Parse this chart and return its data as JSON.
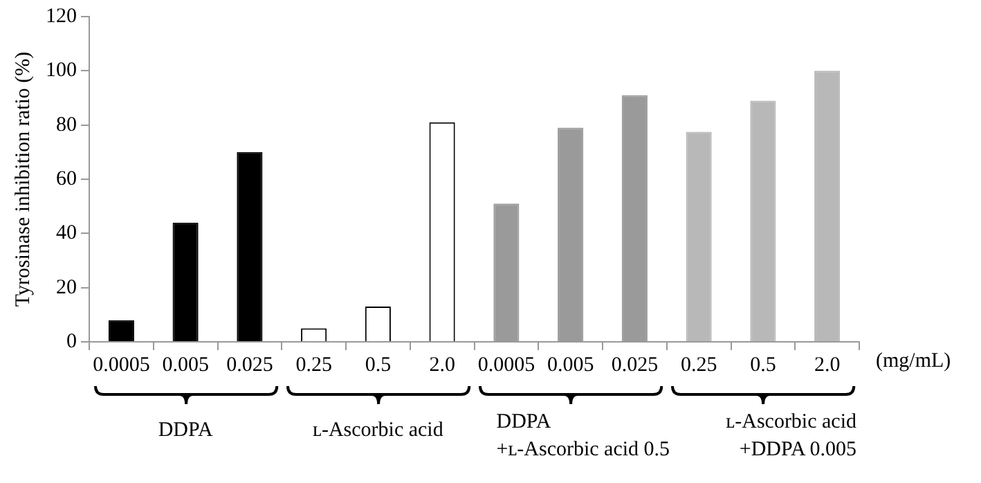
{
  "chart_data": {
    "type": "bar",
    "ylabel": "Tyrosinase inhibition ratio (%)",
    "categories": [
      "0.0005",
      "0.005",
      "0.025",
      "0.25",
      "0.5",
      "2.0",
      "0.0005",
      "0.005",
      "0.025",
      "0.25",
      "0.5",
      "2.0"
    ],
    "values": [
      8,
      44,
      70,
      5,
      13,
      81,
      51,
      79,
      91,
      77.5,
      89,
      100
    ],
    "colors": [
      "#000000",
      "#000000",
      "#000000",
      "#ffffff",
      "#ffffff",
      "#ffffff",
      "#9a9a9a",
      "#9a9a9a",
      "#9a9a9a",
      "#b8b8b8",
      "#b8b8b8",
      "#b8b8b8"
    ],
    "ylim": [
      0,
      120
    ],
    "yticks": [
      0,
      20,
      40,
      60,
      80,
      100,
      120
    ],
    "grid": false,
    "legend": false,
    "annotations": [
      "(mg/mL)",
      "DDPA",
      "ʟ-Ascorbic acid",
      "DDPA\n+ʟ-Ascorbic acid 0.5",
      "ʟ-Ascorbic acid\n+DDPA 0.005"
    ]
  }
}
